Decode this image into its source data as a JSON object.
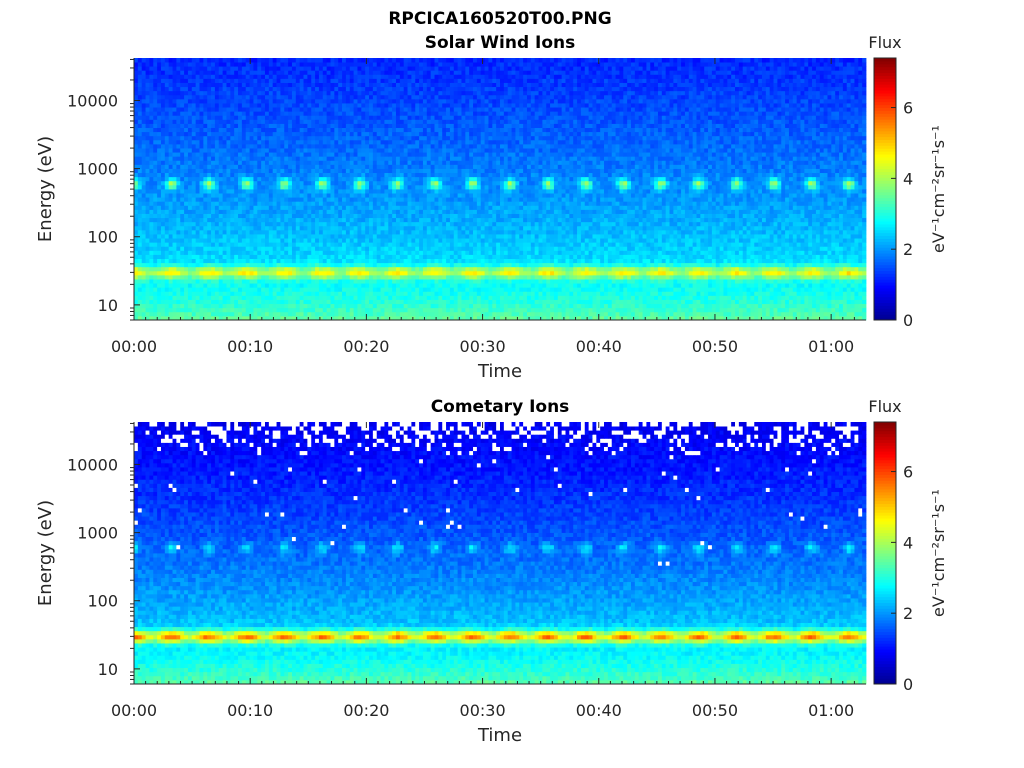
{
  "figure": {
    "filename": "RPCICA160520T00.PNG"
  },
  "colormap": {
    "name": "jet",
    "stops": [
      "#00008f",
      "#0000ff",
      "#0080ff",
      "#00ffff",
      "#80ff80",
      "#ffff00",
      "#ff8000",
      "#ff0000",
      "#800000"
    ]
  },
  "chart_data": [
    {
      "type": "heatmap",
      "title": "Solar Wind Ions",
      "xlabel": "Time",
      "ylabel": "Energy (eV)",
      "x_ticklabels": [
        "00:00",
        "00:10",
        "00:20",
        "00:30",
        "00:40",
        "00:50",
        "01:00"
      ],
      "x_ticks_min": [
        0,
        10,
        20,
        30,
        40,
        50,
        60
      ],
      "xlim_min": [
        0,
        63
      ],
      "y_scale": "log",
      "y_ticklabels": [
        "10",
        "100",
        "1000",
        "10000"
      ],
      "y_ticks": [
        10,
        100,
        1000,
        10000
      ],
      "ylim": [
        6,
        42000
      ],
      "colorbar": {
        "title": "Flux",
        "label": "eV⁻¹cm⁻²sr⁻¹s⁻¹",
        "ticklabels": [
          "0",
          "2",
          "4",
          "6"
        ],
        "ticks": [
          0,
          2,
          4,
          6
        ],
        "range": [
          0,
          7.4
        ]
      },
      "features": {
        "background_flux_low_energy": 3.6,
        "background_flux_high_energy": 1.2,
        "band_energy_eV": 30,
        "band_flux": 4.8,
        "peak_energy_eV": 600,
        "peak_flux": 4.2,
        "sparse_top": false
      }
    },
    {
      "type": "heatmap",
      "title": "Cometary Ions",
      "xlabel": "Time",
      "ylabel": "Energy (eV)",
      "x_ticklabels": [
        "00:00",
        "00:10",
        "00:20",
        "00:30",
        "00:40",
        "00:50",
        "01:00"
      ],
      "x_ticks_min": [
        0,
        10,
        20,
        30,
        40,
        50,
        60
      ],
      "xlim_min": [
        0,
        63
      ],
      "y_scale": "log",
      "y_ticklabels": [
        "10",
        "100",
        "1000",
        "10000"
      ],
      "y_ticks": [
        10,
        100,
        1000,
        10000
      ],
      "ylim": [
        6,
        42000
      ],
      "colorbar": {
        "title": "Flux",
        "label": "eV⁻¹cm⁻²sr⁻¹s⁻¹",
        "ticklabels": [
          "0",
          "2",
          "4",
          "6"
        ],
        "ticks": [
          0,
          2,
          4,
          6
        ],
        "range": [
          0,
          7.4
        ]
      },
      "features": {
        "background_flux_low_energy": 3.6,
        "background_flux_high_energy": 0.8,
        "band_energy_eV": 30,
        "band_flux": 5.7,
        "peak_energy_eV": 600,
        "peak_flux": 2.8,
        "sparse_top": true
      }
    }
  ]
}
